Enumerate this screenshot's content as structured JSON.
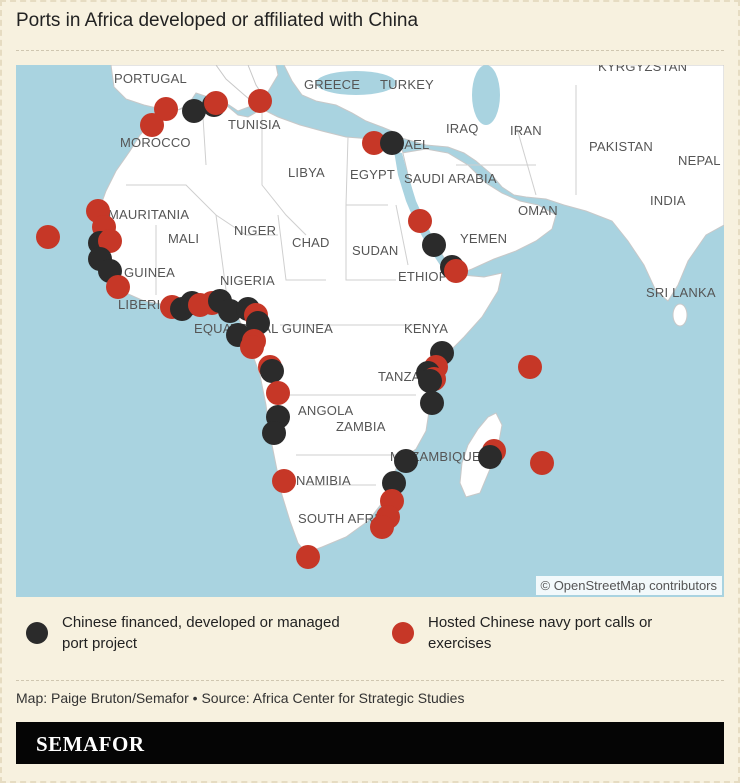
{
  "title": "Ports in Africa developed or affiliated with China",
  "map": {
    "attribution": "© OpenStreetMap contributors",
    "country_labels": [
      {
        "name": "PORTUGAL"
      },
      {
        "name": "GREECE"
      },
      {
        "name": "TURKEY"
      },
      {
        "name": "KYRGYZSTAN"
      },
      {
        "name": "TUNISIA"
      },
      {
        "name": "MOROCCO"
      },
      {
        "name": "IRAQ"
      },
      {
        "name": "IRAN"
      },
      {
        "name": "ISRAEL"
      },
      {
        "name": "PAKISTAN"
      },
      {
        "name": "NEPAL"
      },
      {
        "name": "LIBYA"
      },
      {
        "name": "EGYPT"
      },
      {
        "name": "SAUDI ARABIA"
      },
      {
        "name": "OMAN"
      },
      {
        "name": "INDIA"
      },
      {
        "name": "MAURITANIA"
      },
      {
        "name": "MALI"
      },
      {
        "name": "NIGER"
      },
      {
        "name": "CHAD"
      },
      {
        "name": "SUDAN"
      },
      {
        "name": "YEMEN"
      },
      {
        "name": "ETHIOPIA"
      },
      {
        "name": "GUINEA"
      },
      {
        "name": "NIGERIA"
      },
      {
        "name": "SRI LANKA"
      },
      {
        "name": "LIBERIA"
      },
      {
        "name": "EQUATORIAL GUINEA"
      },
      {
        "name": "KENYA"
      },
      {
        "name": "TANZANIA"
      },
      {
        "name": "ANGOLA"
      },
      {
        "name": "ZAMBIA"
      },
      {
        "name": "MOZAMBIQUE"
      },
      {
        "name": "NAMIBIA"
      },
      {
        "name": "SOUTH AFRICA"
      }
    ],
    "colors": {
      "water": "#a9d3e0",
      "land": "#ffffff",
      "border": "#c8c8c8"
    }
  },
  "legend": {
    "items": [
      {
        "label": "Chinese financed, developed or managed port project",
        "color": "#2b2b2b"
      },
      {
        "label": "Hosted Chinese navy port calls or exercises",
        "color": "#c63727"
      }
    ]
  },
  "credit": "Map: Paige Bruton/Semafor • Source: Africa Center for Strategic Studies",
  "brand": "SEMAFOR"
}
